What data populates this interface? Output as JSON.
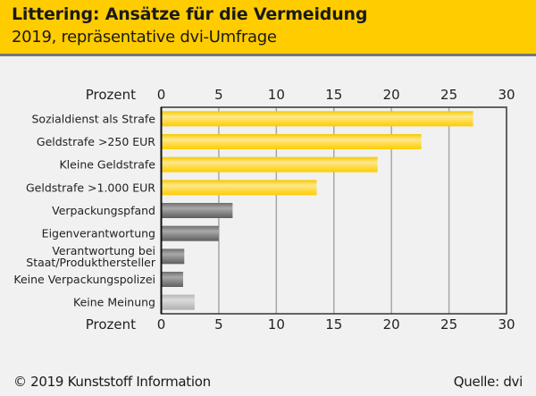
{
  "header": {
    "title": "Littering: Ansätze für die Vermeidung",
    "subtitle": "2019, repräsentative dvi-Umfrage"
  },
  "footer": {
    "copyright": "© 2019 Kunststoff Information",
    "source": "Quelle: dvi"
  },
  "colors": {
    "header_bg": "#ffcc00",
    "yellow_bar": "#ffd21a",
    "dark_grey_bar": "#7a7a7a",
    "light_grey_bar": "#c4c4c4"
  },
  "chart_data": {
    "type": "bar",
    "orientation": "horizontal",
    "title": "Littering: Ansätze für die Vermeidung",
    "subtitle": "2019, repräsentative dvi-Umfrage",
    "xlabel": "Prozent",
    "ylabel": "",
    "xlim": [
      0,
      30
    ],
    "ticks": [
      0,
      5,
      10,
      15,
      20,
      25,
      30
    ],
    "tick_labels": [
      "0",
      "5",
      "10",
      "15",
      "20",
      "25",
      "30"
    ],
    "axis_position": "top and bottom",
    "grid": true,
    "categories": [
      "Sozialdienst als Strafe",
      "Geldstrafe >250 EUR",
      "Kleine Geldstrafe",
      "Geldstrafe >1.000 EUR",
      "Verpackungspfand",
      "Eigenverantwortung",
      "Verantwortung bei\nStaat/Produkthersteller",
      "Keine Verpackungspolizei",
      "Keine Meinung"
    ],
    "values": [
      27.1,
      22.6,
      18.8,
      13.5,
      6.2,
      5.0,
      2.0,
      1.9,
      2.9
    ],
    "bar_styles": [
      "yellow",
      "yellow",
      "yellow",
      "yellow",
      "dark",
      "dark",
      "dark",
      "dark",
      "light"
    ]
  }
}
